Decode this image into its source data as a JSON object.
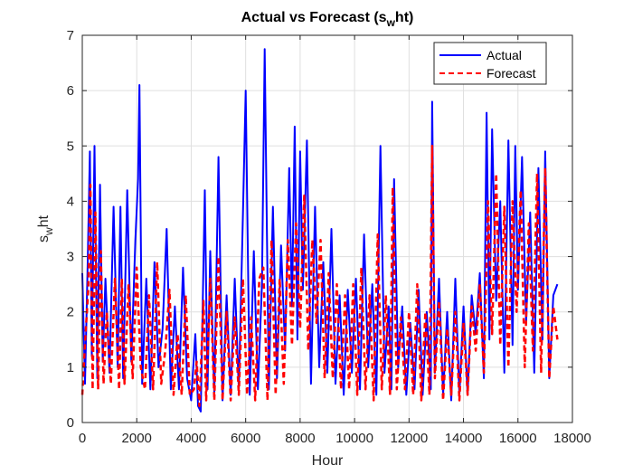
{
  "chart_data": {
    "type": "line",
    "title_main": "Actual vs Forecast (s",
    "title_sub": "w",
    "title_end": "ht)",
    "xlabel": "Hour",
    "ylabel_main": "s",
    "ylabel_sub": "w",
    "ylabel_end": "ht",
    "xlim": [
      0,
      18000
    ],
    "ylim": [
      0,
      7
    ],
    "xticks": [
      0,
      2000,
      4000,
      6000,
      8000,
      10000,
      12000,
      14000,
      16000,
      18000
    ],
    "yticks": [
      0,
      1,
      2,
      3,
      4,
      5,
      6,
      7
    ],
    "grid": true,
    "legend_position": "top-right",
    "series": [
      {
        "name": "Actual",
        "color": "#0000ff",
        "style": "solid",
        "x": [
          0,
          100,
          200,
          280,
          350,
          450,
          550,
          650,
          750,
          850,
          1000,
          1150,
          1300,
          1400,
          1500,
          1650,
          1800,
          1950,
          2050,
          2100,
          2200,
          2350,
          2500,
          2650,
          2800,
          2950,
          3100,
          3250,
          3400,
          3550,
          3700,
          3850,
          4000,
          4150,
          4250,
          4350,
          4500,
          4600,
          4700,
          4850,
          5000,
          5150,
          5300,
          5450,
          5600,
          5750,
          5900,
          6000,
          6150,
          6300,
          6450,
          6600,
          6700,
          6850,
          7000,
          7150,
          7300,
          7450,
          7600,
          7700,
          7800,
          7900,
          8000,
          8100,
          8250,
          8400,
          8550,
          8700,
          8850,
          9000,
          9150,
          9300,
          9450,
          9600,
          9750,
          9900,
          10050,
          10200,
          10350,
          10500,
          10650,
          10800,
          10950,
          11100,
          11250,
          11350,
          11450,
          11600,
          11750,
          11900,
          12050,
          12200,
          12350,
          12500,
          12650,
          12800,
          12850,
          12950,
          13100,
          13250,
          13400,
          13550,
          13700,
          13850,
          14000,
          14150,
          14300,
          14450,
          14600,
          14750,
          14850,
          14950,
          15050,
          15200,
          15350,
          15500,
          15650,
          15800,
          15900,
          16000,
          16150,
          16300,
          16450,
          16600,
          16750,
          16900,
          17000,
          17150,
          17300,
          17450
        ],
        "y": [
          2.7,
          0.7,
          2.9,
          4.9,
          1.2,
          5.0,
          0.8,
          4.3,
          1.1,
          2.6,
          0.9,
          3.9,
          1.0,
          3.9,
          0.8,
          4.2,
          1.1,
          3.3,
          4.4,
          6.1,
          0.7,
          2.6,
          0.6,
          2.9,
          1.0,
          1.7,
          3.5,
          0.6,
          2.1,
          0.6,
          2.8,
          0.8,
          0.4,
          1.6,
          0.3,
          0.2,
          4.2,
          0.6,
          3.1,
          0.5,
          4.8,
          0.4,
          2.3,
          0.5,
          2.6,
          0.6,
          3.8,
          6.0,
          0.5,
          3.1,
          0.6,
          2.5,
          6.75,
          0.6,
          3.9,
          0.8,
          3.2,
          1.3,
          4.6,
          2.1,
          5.35,
          1.5,
          4.9,
          2.4,
          5.1,
          0.7,
          3.9,
          1.0,
          2.9,
          0.9,
          3.5,
          0.7,
          2.3,
          0.5,
          2.4,
          0.9,
          2.6,
          0.6,
          3.4,
          1.0,
          2.5,
          0.5,
          5.0,
          0.9,
          2.1,
          0.6,
          4.4,
          1.0,
          2.1,
          0.5,
          1.8,
          0.6,
          2.4,
          0.5,
          2.0,
          0.6,
          5.8,
          0.9,
          2.6,
          0.5,
          2.0,
          0.4,
          2.6,
          0.5,
          2.1,
          0.5,
          2.3,
          1.6,
          2.7,
          0.8,
          5.6,
          1.5,
          5.3,
          2.2,
          4.0,
          0.9,
          5.1,
          1.4,
          5.0,
          2.4,
          4.8,
          1.8,
          3.8,
          0.9,
          4.6,
          1.5,
          4.9,
          0.8,
          2.3,
          2.5
        ]
      },
      {
        "name": "Forecast",
        "color": "#ff0000",
        "style": "dashed",
        "x": [
          0,
          120,
          220,
          300,
          380,
          480,
          580,
          680,
          780,
          900,
          1050,
          1200,
          1350,
          1450,
          1550,
          1700,
          1850,
          2000,
          2150,
          2300,
          2450,
          2600,
          2750,
          2900,
          3050,
          3200,
          3350,
          3500,
          3650,
          3800,
          3950,
          4100,
          4200,
          4300,
          4450,
          4550,
          4700,
          4850,
          5000,
          5150,
          5300,
          5450,
          5600,
          5750,
          5900,
          6050,
          6200,
          6350,
          6500,
          6650,
          6800,
          6950,
          7100,
          7250,
          7400,
          7550,
          7700,
          7850,
          8000,
          8150,
          8300,
          8450,
          8600,
          8750,
          8900,
          9050,
          9200,
          9350,
          9500,
          9650,
          9800,
          9950,
          10100,
          10250,
          10400,
          10550,
          10700,
          10850,
          11000,
          11150,
          11300,
          11400,
          11550,
          11700,
          11850,
          12000,
          12150,
          12300,
          12450,
          12600,
          12750,
          12850,
          12950,
          13100,
          13250,
          13400,
          13550,
          13700,
          13850,
          14000,
          14150,
          14300,
          14450,
          14600,
          14750,
          14900,
          15050,
          15200,
          15350,
          15500,
          15650,
          15800,
          15950,
          16100,
          16250,
          16400,
          16550,
          16700,
          16850,
          17000,
          17150,
          17300,
          17450
        ],
        "y": [
          0.5,
          1.6,
          2.4,
          4.3,
          0.6,
          3.8,
          0.6,
          3.1,
          0.7,
          2.0,
          0.7,
          2.6,
          0.6,
          2.6,
          0.7,
          2.5,
          0.8,
          2.8,
          1.0,
          0.6,
          2.3,
          0.6,
          2.9,
          0.7,
          1.3,
          2.4,
          0.5,
          1.6,
          0.5,
          2.3,
          0.5,
          0.6,
          1.1,
          0.3,
          2.2,
          0.4,
          2.6,
          0.4,
          3.0,
          0.4,
          2.0,
          0.4,
          1.9,
          0.5,
          2.6,
          0.5,
          1.9,
          0.4,
          2.6,
          2.8,
          0.4,
          3.3,
          0.5,
          2.6,
          0.7,
          3.3,
          1.4,
          3.6,
          1.7,
          4.1,
          1.3,
          3.3,
          1.8,
          3.3,
          0.8,
          2.7,
          0.8,
          2.5,
          0.6,
          2.3,
          0.6,
          2.5,
          0.5,
          2.8,
          0.6,
          2.3,
          0.4,
          3.4,
          0.6,
          2.3,
          0.5,
          4.25,
          0.6,
          1.9,
          0.6,
          2.0,
          0.5,
          2.5,
          0.4,
          2.0,
          0.5,
          5.0,
          0.8,
          2.2,
          0.4,
          1.7,
          0.5,
          2.0,
          0.4,
          1.8,
          0.5,
          2.1,
          1.3,
          2.5,
          0.9,
          4.0,
          1.6,
          4.5,
          1.4,
          3.9,
          1.0,
          4.0,
          2.0,
          4.2,
          1.0,
          3.6,
          1.3,
          4.5,
          0.9,
          4.6,
          0.8,
          2.1,
          1.5
        ]
      }
    ]
  }
}
